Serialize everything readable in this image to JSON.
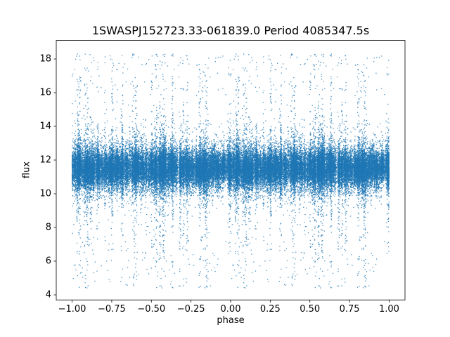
{
  "chart_data": {
    "type": "scatter",
    "title": "1SWASPJ152723.33-061839.0 Period 4085347.5s",
    "xlabel": "phase",
    "ylabel": "flux",
    "xlim": [
      -1.1,
      1.1
    ],
    "ylim": [
      3.7,
      19.1
    ],
    "xticks": [
      -1.0,
      -0.75,
      -0.5,
      -0.25,
      0.0,
      0.25,
      0.5,
      0.75,
      1.0
    ],
    "xtick_labels": [
      "−1.00",
      "−0.75",
      "−0.50",
      "−0.25",
      "0.00",
      "0.25",
      "0.50",
      "0.75",
      "1.00"
    ],
    "yticks": [
      4,
      6,
      8,
      10,
      12,
      14,
      16,
      18
    ],
    "ytick_labels": [
      "4",
      "6",
      "8",
      "10",
      "12",
      "14",
      "16",
      "18"
    ],
    "grid": false,
    "legend": null,
    "marker_color": "#1f77b4",
    "marker_alpha": 0.8,
    "marker_size_px": 1.3,
    "series": [
      {
        "name": "flux vs phase (folded light curve, duplicated over [-1,0] and [0,1])",
        "n_points": 30000,
        "phase_domain": [
          0,
          1
        ],
        "plotted_twice": true,
        "flux_median": 11.5,
        "flux_core_sigma": 0.55,
        "flux_min": 4.4,
        "flux_max": 18.3,
        "n_phase_columns": 500,
        "n_streak_columns": 52,
        "phase_jitter": 0.0035,
        "seed": 1527
      }
    ],
    "description": "Dense horizontal band of points near flux 11-12 spanning phase -1 to 1, with many narrow vertical streaks of scatter reaching up to ~18 and down to ~4.5; sparse isolated outliers between flux 4.5 and 8."
  }
}
